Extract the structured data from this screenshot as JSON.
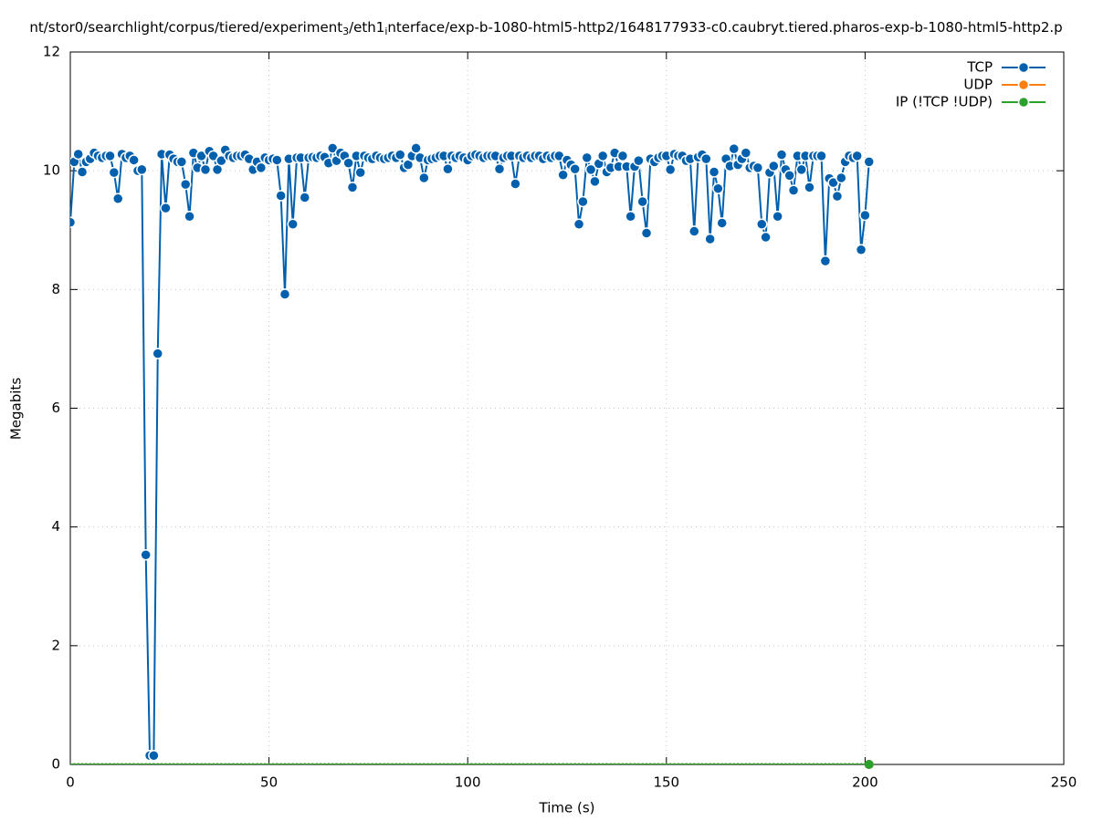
{
  "chart_data": {
    "type": "line",
    "title": [
      "nt/stor0/searchlight/corpus/tiered/experiment",
      "3",
      "/eth1",
      "i",
      "nterface/exp-b-1080-html5-http2/1648177933-c0.caubryt.tiered.pharos-exp-b-1080-html5-http2.p"
    ],
    "xlabel": "Time (s)",
    "ylabel": "Megabits",
    "xlim": [
      0,
      250
    ],
    "xticks": [
      0,
      50,
      100,
      150,
      200,
      250
    ],
    "ylim": [
      0,
      12
    ],
    "yticks": [
      0,
      2,
      4,
      6,
      8,
      10,
      12
    ],
    "grid": true,
    "legend": "top-right",
    "x": [
      0,
      1,
      2,
      3,
      4,
      5,
      6,
      7,
      8,
      9,
      10,
      11,
      12,
      13,
      14,
      15,
      16,
      17,
      18,
      19,
      20,
      21,
      22,
      23,
      24,
      25,
      26,
      27,
      28,
      29,
      30,
      31,
      32,
      33,
      34,
      35,
      36,
      37,
      38,
      39,
      40,
      41,
      42,
      43,
      44,
      45,
      46,
      47,
      48,
      49,
      50,
      51,
      52,
      53,
      54,
      55,
      56,
      57,
      58,
      59,
      60,
      61,
      62,
      63,
      64,
      65,
      66,
      67,
      68,
      69,
      70,
      71,
      72,
      73,
      74,
      75,
      76,
      77,
      78,
      79,
      80,
      81,
      82,
      83,
      84,
      85,
      86,
      87,
      88,
      89,
      90,
      91,
      92,
      93,
      94,
      95,
      96,
      97,
      98,
      99,
      100,
      101,
      102,
      103,
      104,
      105,
      106,
      107,
      108,
      109,
      110,
      111,
      112,
      113,
      114,
      115,
      116,
      117,
      118,
      119,
      120,
      121,
      122,
      123,
      124,
      125,
      126,
      127,
      128,
      129,
      130,
      131,
      132,
      133,
      134,
      135,
      136,
      137,
      138,
      139,
      140,
      141,
      142,
      143,
      144,
      145,
      146,
      147,
      148,
      149,
      150,
      151,
      152,
      153,
      154,
      155,
      156,
      157,
      158,
      159,
      160,
      161,
      162,
      163,
      164,
      165,
      166,
      167,
      168,
      169,
      170,
      171,
      172,
      173,
      174,
      175,
      176,
      177,
      178,
      179,
      180,
      181,
      182,
      183,
      184,
      185,
      186,
      187,
      188,
      189,
      190,
      191,
      192,
      193,
      194,
      195,
      196,
      197,
      198,
      199,
      200,
      201
    ],
    "series": [
      {
        "name": "TCP",
        "color": "#0060ad",
        "values": [
          9.13,
          10.15,
          10.28,
          9.98,
          10.15,
          10.2,
          10.3,
          10.25,
          10.22,
          10.25,
          10.25,
          9.97,
          9.53,
          10.28,
          10.22,
          10.25,
          10.18,
          10.0,
          10.02,
          3.53,
          0.15,
          0.15,
          6.92,
          10.28,
          9.37,
          10.27,
          10.2,
          10.15,
          10.15,
          9.77,
          9.23,
          10.3,
          10.05,
          10.25,
          10.02,
          10.33,
          10.25,
          10.02,
          10.17,
          10.35,
          10.25,
          10.22,
          10.25,
          10.25,
          10.27,
          10.2,
          10.02,
          10.15,
          10.05,
          10.22,
          10.18,
          10.2,
          10.18,
          9.58,
          7.92,
          10.2,
          9.1,
          10.22,
          10.22,
          9.55,
          10.22,
          10.23,
          10.22,
          10.25,
          10.23,
          10.13,
          10.38,
          10.17,
          10.3,
          10.25,
          10.13,
          9.72,
          10.25,
          9.97,
          10.25,
          10.22,
          10.2,
          10.25,
          10.22,
          10.2,
          10.22,
          10.25,
          10.22,
          10.27,
          10.05,
          10.1,
          10.25,
          10.38,
          10.22,
          9.88,
          10.18,
          10.2,
          10.22,
          10.25,
          10.25,
          10.03,
          10.25,
          10.22,
          10.25,
          10.22,
          10.18,
          10.25,
          10.27,
          10.25,
          10.22,
          10.25,
          10.25,
          10.25,
          10.03,
          10.22,
          10.25,
          10.25,
          9.78,
          10.25,
          10.22,
          10.25,
          10.22,
          10.25,
          10.25,
          10.2,
          10.25,
          10.22,
          10.25,
          10.25,
          9.93,
          10.18,
          10.1,
          10.03,
          9.1,
          9.48,
          10.22,
          10.02,
          9.82,
          10.12,
          10.25,
          9.98,
          10.05,
          10.3,
          10.07,
          10.25,
          10.07,
          9.23,
          10.07,
          10.17,
          9.48,
          8.95,
          10.2,
          10.15,
          10.22,
          10.25,
          10.25,
          10.02,
          10.28,
          10.25,
          10.25,
          10.17,
          10.2,
          8.98,
          10.23,
          10.27,
          10.2,
          8.85,
          9.98,
          9.7,
          9.12,
          10.2,
          10.08,
          10.37,
          10.1,
          10.2,
          10.3,
          10.05,
          10.08,
          10.05,
          9.1,
          8.88,
          9.97,
          10.08,
          9.23,
          10.27,
          10.02,
          9.92,
          9.67,
          10.25,
          10.02,
          10.25,
          9.72,
          10.25,
          10.25,
          10.25,
          8.48,
          9.87,
          9.8,
          9.57,
          9.88,
          10.15,
          10.25,
          10.22,
          10.25,
          8.67,
          9.25,
          10.15
        ]
      },
      {
        "name": "UDP",
        "color": "#ff7f0e",
        "values": [
          0,
          0,
          0,
          0,
          0,
          0,
          0,
          0,
          0,
          0,
          0,
          0,
          0,
          0,
          0,
          0,
          0,
          0,
          0,
          0,
          0,
          0,
          0,
          0,
          0,
          0,
          0,
          0,
          0,
          0,
          0,
          0,
          0,
          0,
          0,
          0,
          0,
          0,
          0,
          0,
          0,
          0,
          0,
          0,
          0,
          0,
          0,
          0,
          0,
          0,
          0,
          0,
          0,
          0,
          0,
          0,
          0,
          0,
          0,
          0,
          0,
          0,
          0,
          0,
          0,
          0,
          0,
          0,
          0,
          0,
          0,
          0,
          0,
          0,
          0,
          0,
          0,
          0,
          0,
          0,
          0,
          0,
          0,
          0,
          0,
          0,
          0,
          0,
          0,
          0,
          0,
          0,
          0,
          0,
          0,
          0,
          0,
          0,
          0,
          0,
          0,
          0,
          0,
          0,
          0,
          0,
          0,
          0,
          0,
          0,
          0,
          0,
          0,
          0,
          0,
          0,
          0,
          0,
          0,
          0,
          0,
          0,
          0,
          0,
          0,
          0,
          0,
          0,
          0,
          0,
          0,
          0,
          0,
          0,
          0,
          0,
          0,
          0,
          0,
          0,
          0,
          0,
          0,
          0,
          0,
          0,
          0,
          0,
          0,
          0,
          0,
          0,
          0,
          0,
          0,
          0,
          0,
          0,
          0,
          0,
          0,
          0,
          0,
          0,
          0,
          0,
          0,
          0,
          0,
          0,
          0,
          0,
          0,
          0,
          0,
          0,
          0,
          0,
          0,
          0,
          0,
          0,
          0,
          0,
          0,
          0,
          0,
          0,
          0,
          0,
          0,
          0,
          0,
          0,
          0,
          0,
          0,
          0,
          0,
          0,
          0,
          0
        ]
      },
      {
        "name": "IP (!TCP  !UDP)",
        "color": "#2ca02c",
        "values": [
          0,
          0,
          0,
          0,
          0,
          0,
          0,
          0,
          0,
          0,
          0,
          0,
          0,
          0,
          0,
          0,
          0,
          0,
          0,
          0,
          0,
          0,
          0,
          0,
          0,
          0,
          0,
          0,
          0,
          0,
          0,
          0,
          0,
          0,
          0,
          0,
          0,
          0,
          0,
          0,
          0,
          0,
          0,
          0,
          0,
          0,
          0,
          0,
          0,
          0,
          0,
          0,
          0,
          0,
          0,
          0,
          0,
          0,
          0,
          0,
          0,
          0,
          0,
          0,
          0,
          0,
          0,
          0,
          0,
          0,
          0,
          0,
          0,
          0,
          0,
          0,
          0,
          0,
          0,
          0,
          0,
          0,
          0,
          0,
          0,
          0,
          0,
          0,
          0,
          0,
          0,
          0,
          0,
          0,
          0,
          0,
          0,
          0,
          0,
          0,
          0,
          0,
          0,
          0,
          0,
          0,
          0,
          0,
          0,
          0,
          0,
          0,
          0,
          0,
          0,
          0,
          0,
          0,
          0,
          0,
          0,
          0,
          0,
          0,
          0,
          0,
          0,
          0,
          0,
          0,
          0,
          0,
          0,
          0,
          0,
          0,
          0,
          0,
          0,
          0,
          0,
          0,
          0,
          0,
          0,
          0,
          0,
          0,
          0,
          0,
          0,
          0,
          0,
          0,
          0,
          0,
          0,
          0,
          0,
          0,
          0,
          0,
          0,
          0,
          0,
          0,
          0,
          0,
          0,
          0,
          0,
          0,
          0,
          0,
          0,
          0,
          0,
          0,
          0,
          0,
          0,
          0,
          0,
          0,
          0,
          0,
          0,
          0,
          0,
          0,
          0,
          0,
          0,
          0,
          0,
          0,
          0,
          0,
          0,
          0,
          0,
          0
        ]
      }
    ]
  }
}
